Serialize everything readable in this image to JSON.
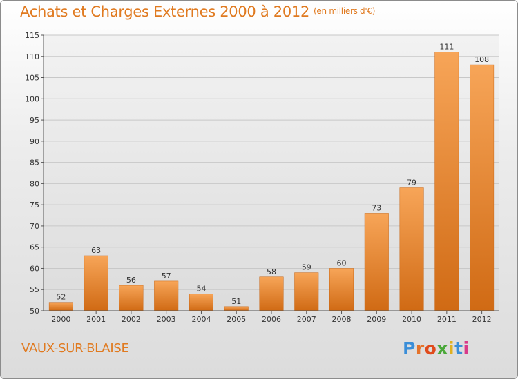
{
  "header": {
    "title": "Achats et Charges Externes 2000 à 2012",
    "subtitle": "(en milliers d'€)"
  },
  "footer": {
    "place": "VAUX-SUR-BLAISE",
    "logo": [
      "P",
      "r",
      "o",
      "x",
      "i",
      "t",
      "i"
    ]
  },
  "chart_data": {
    "type": "bar",
    "title": "Achats et Charges Externes 2000 à 2012",
    "subtitle": "(en milliers d'€)",
    "categories": [
      "2000",
      "2001",
      "2002",
      "2003",
      "2004",
      "2005",
      "2006",
      "2007",
      "2008",
      "2009",
      "2010",
      "2011",
      "2012"
    ],
    "values": [
      52,
      63,
      56,
      57,
      54,
      51,
      58,
      59,
      60,
      73,
      79,
      111,
      108
    ],
    "data_labels": [
      "52",
      "63",
      "56",
      "57",
      "54",
      "51",
      "58",
      "59",
      "60",
      "73",
      "79",
      "111",
      "108"
    ],
    "ylim": [
      50,
      115
    ],
    "yticks": [
      50,
      55,
      60,
      65,
      70,
      75,
      80,
      85,
      90,
      95,
      100,
      105,
      110,
      115
    ],
    "ytick_labels": [
      "50",
      "55",
      "60",
      "65",
      "70",
      "75",
      "80",
      "85",
      "90",
      "95",
      "100",
      "105",
      "110",
      "115"
    ],
    "grid": true,
    "legend": "none",
    "colors": {
      "bar_light": "#f7a558",
      "bar_dark": "#d06a14",
      "title": "#e07a20",
      "grid": "#c8c8c8",
      "plot_bg": "#e6e6e6"
    }
  }
}
